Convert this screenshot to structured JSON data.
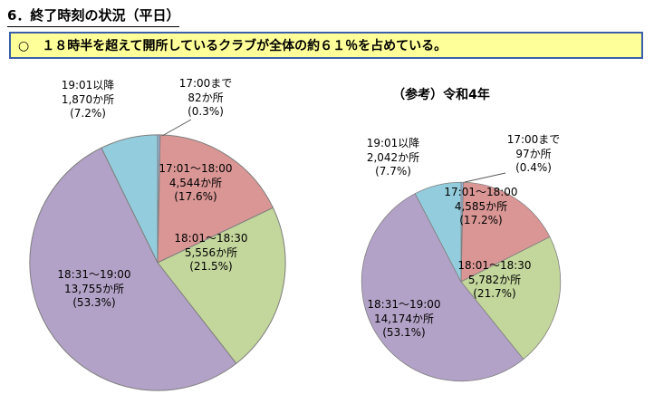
{
  "page": {
    "title": "6．終了時刻の状況（平日）",
    "callout": "○　１８時半を超えて開所しているクラブが全体の約６１％を占めている。"
  },
  "chart_data": [
    {
      "type": "pie",
      "title": "",
      "direction": "clockwise",
      "start_angle_deg": 0,
      "slices": [
        {
          "label": "17:00まで",
          "count": 82,
          "value": "82か所",
          "pct": 0.3,
          "pct_label": "(0.3%)",
          "color": "#95b3d7"
        },
        {
          "label": "17:01～18:00",
          "count": 4544,
          "value": "4,544か所",
          "pct": 17.6,
          "pct_label": "(17.6%)",
          "color": "#d99694"
        },
        {
          "label": "18:01～18:30",
          "count": 5556,
          "value": "5,556か所",
          "pct": 21.5,
          "pct_label": "(21.5%)",
          "color": "#c3d69b"
        },
        {
          "label": "18:31～19:00",
          "count": 13755,
          "value": "13,755か所",
          "pct": 53.3,
          "pct_label": "(53.3%)",
          "color": "#b3a2c7"
        },
        {
          "label": "19:01以降",
          "count": 1870,
          "value": "1,870か所",
          "pct": 7.2,
          "pct_label": "(7.2%)",
          "color": "#93cddd"
        }
      ]
    },
    {
      "type": "pie",
      "title": "（参考）令和4年",
      "direction": "clockwise",
      "start_angle_deg": 0,
      "slices": [
        {
          "label": "17:00まで",
          "count": 97,
          "value": "97か所",
          "pct": 0.4,
          "pct_label": "(0.4%)",
          "color": "#95b3d7"
        },
        {
          "label": "17:01～18:00",
          "count": 4585,
          "value": "4,585か所",
          "pct": 17.2,
          "pct_label": "(17.2%)",
          "color": "#d99694"
        },
        {
          "label": "18:01～18:30",
          "count": 5782,
          "value": "5,782か所",
          "pct": 21.7,
          "pct_label": "(21.7%)",
          "color": "#c3d69b"
        },
        {
          "label": "18:31～19:00",
          "count": 14174,
          "value": "14,174か所",
          "pct": 53.1,
          "pct_label": "(53.1%)",
          "color": "#b3a2c7"
        },
        {
          "label": "19:01以降",
          "count": 2042,
          "value": "2,042か所",
          "pct": 7.7,
          "pct_label": "(7.7%)",
          "color": "#93cddd"
        }
      ]
    }
  ]
}
